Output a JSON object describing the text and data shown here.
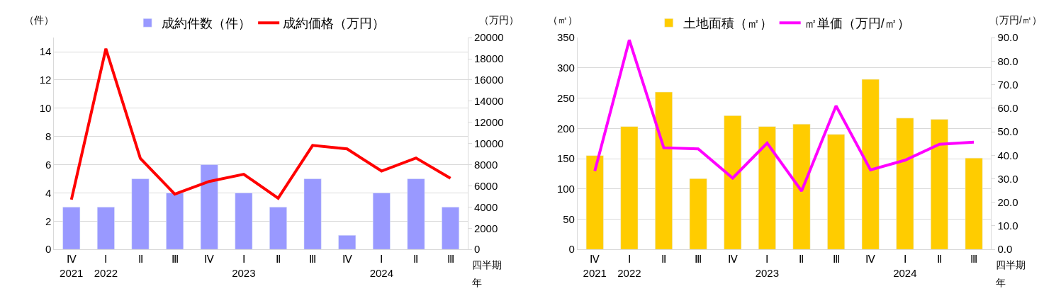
{
  "chart_data": [
    {
      "type": "bar",
      "ylabel": "（件）",
      "y2label": "（万円）",
      "xlabel": "四半期",
      "annotations": [
        "年"
      ],
      "categories": [
        "Ⅳ\n2021",
        "Ⅰ\n2022",
        "Ⅱ",
        "Ⅲ",
        "Ⅳ",
        "Ⅰ\n2023",
        "Ⅱ",
        "Ⅲ",
        "Ⅳ",
        "Ⅰ\n2024",
        "Ⅱ",
        "Ⅲ"
      ],
      "series": [
        {
          "name": "成約件数（件）",
          "color": "#9999ff",
          "values": [
            3,
            3,
            5,
            4,
            6,
            4,
            3,
            5,
            1,
            4,
            5,
            3
          ]
        },
        {
          "name": "成約価格（万円）",
          "type": "line",
          "axis": "y2",
          "color": "#ff0000",
          "values": [
            4700,
            18950,
            8600,
            5220,
            6420,
            7100,
            4840,
            9820,
            9490,
            7400,
            8630,
            6720
          ]
        }
      ],
      "ylim": [
        0,
        15
      ],
      "yticks": [
        0,
        2,
        4,
        6,
        8,
        10,
        12,
        14
      ],
      "y2lim": [
        0,
        20000
      ],
      "y2ticks": [
        0,
        2000,
        4000,
        6000,
        8000,
        10000,
        12000,
        14000,
        16000,
        18000,
        20000
      ],
      "grid": "y",
      "legend": "top",
      "marker": "none",
      "line_style": "solid"
    },
    {
      "type": "bar",
      "ylabel": "（㎡）",
      "y2label": "（万円/㎡）",
      "xlabel": "四半期",
      "annotations": [
        "年"
      ],
      "categories": [
        "Ⅳ\n2021",
        "Ⅰ\n2022",
        "Ⅱ",
        "Ⅲ",
        "Ⅳ",
        "Ⅰ\n2023",
        "Ⅱ",
        "Ⅲ",
        "Ⅳ",
        "Ⅰ\n2024",
        "Ⅱ",
        "Ⅲ"
      ],
      "series": [
        {
          "name": "土地面積（㎡）",
          "color": "#ffcc00",
          "values": [
            155,
            203,
            260,
            117,
            221,
            203,
            207,
            190,
            281,
            217,
            215,
            151
          ]
        },
        {
          "name": "㎡単価（万円/㎡）",
          "type": "line",
          "axis": "y2",
          "color": "#ff00ff",
          "values": [
            33.3,
            89.0,
            43.2,
            42.7,
            30.3,
            45.2,
            24.8,
            61.0,
            33.8,
            37.9,
            44.7,
            45.6
          ]
        }
      ],
      "ylim": [
        0,
        350
      ],
      "yticks": [
        0,
        50,
        100,
        150,
        200,
        250,
        300,
        350
      ],
      "y2lim": [
        0,
        90
      ],
      "y2ticks": [
        {
          "value": 0,
          "label": "0.0"
        },
        {
          "value": 10,
          "label": "10.0"
        },
        {
          "value": 20,
          "label": "20.0"
        },
        {
          "value": 30,
          "label": "30.0"
        },
        {
          "value": 40,
          "label": "40.0"
        },
        {
          "value": 50,
          "label": "50.0"
        },
        {
          "value": 60,
          "label": "60.0"
        },
        {
          "value": 70,
          "label": "70.0"
        },
        {
          "value": 80,
          "label": "80.0"
        },
        {
          "value": 90,
          "label": "90.0"
        }
      ],
      "grid": "y",
      "legend": "top",
      "marker": "none",
      "line_style": "solid"
    }
  ]
}
